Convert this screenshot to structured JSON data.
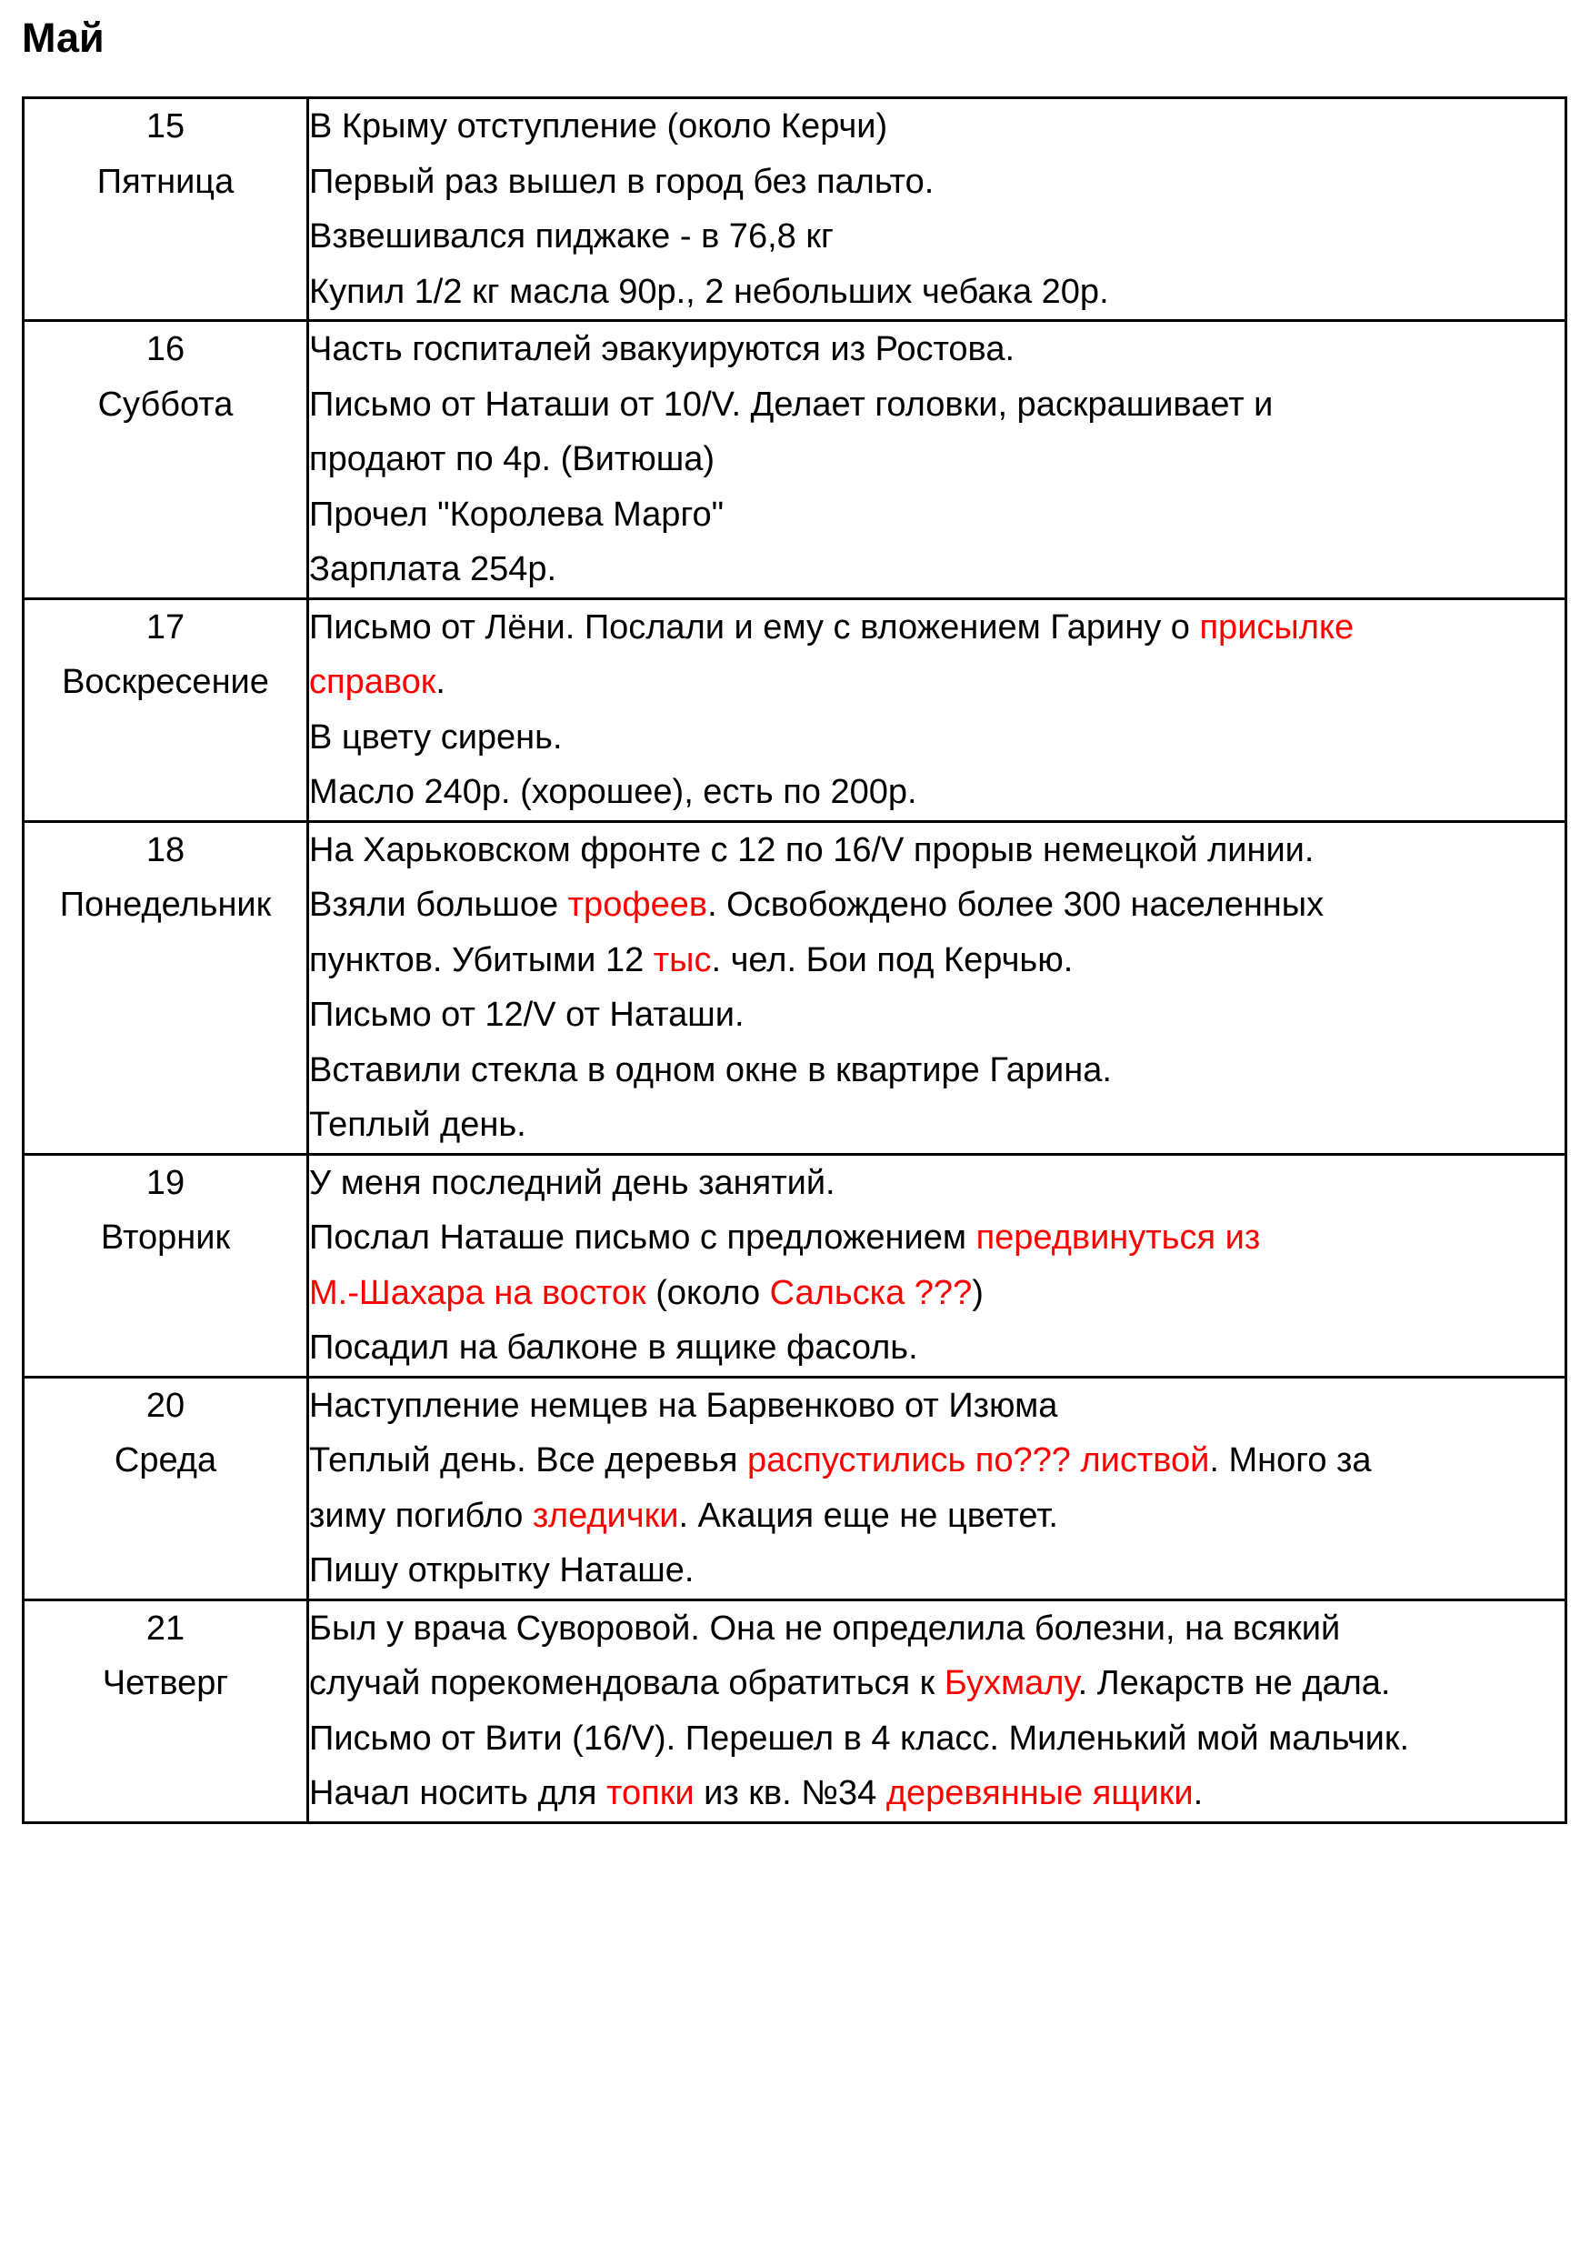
{
  "page": {
    "title": "Май"
  },
  "colors": {
    "text": "#000000",
    "highlight_red": "#ff0000",
    "background": "#ffffff",
    "table_border": "#000000"
  },
  "table": {
    "rows": [
      {
        "day": "15",
        "weekday": "Пятница",
        "lines": [
          [
            {
              "t": "В Крыму отступление (около Керчи)",
              "red": false
            }
          ],
          [
            {
              "t": "Первый раз вышел в город без пальто.",
              "red": false
            }
          ],
          [
            {
              "t": "Взвешивался пиджаке - в 76,8 кг",
              "red": false
            }
          ],
          [
            {
              "t": "Купил 1/2 кг масла 90р., 2 небольших чебака 20р.",
              "red": false
            }
          ]
        ]
      },
      {
        "day": "16",
        "weekday": "Суббота",
        "lines": [
          [
            {
              "t": "Часть госпиталей эвакуируются из Ростова.",
              "red": false
            }
          ],
          [
            {
              "t": "Письмо от Наташи от 10/V. Делает головки, раскрашивает и",
              "red": false
            }
          ],
          [
            {
              "t": "продают по 4р. (Витюша)",
              "red": false
            }
          ],
          [
            {
              "t": "Прочел \"Королева Марго\"",
              "red": false
            }
          ],
          [
            {
              "t": "Зарплата 254р.",
              "red": false
            }
          ]
        ]
      },
      {
        "day": "17",
        "weekday": "Воскресение",
        "lines": [
          [
            {
              "t": "Письмо от Лёни. Послали и ему с вложением Гарину о ",
              "red": false
            },
            {
              "t": "присылке",
              "red": true
            }
          ],
          [
            {
              "t": "справок",
              "red": true
            },
            {
              "t": ".",
              "red": false
            }
          ],
          [
            {
              "t": "В цвету сирень.",
              "red": false
            }
          ],
          [
            {
              "t": "Масло 240р. (хорошее), есть по 200р.",
              "red": false
            }
          ]
        ]
      },
      {
        "day": "18",
        "weekday": "Понедельник",
        "lines": [
          [
            {
              "t": "На Харьковском фронте с 12 по 16/V прорыв немецкой линии.",
              "red": false
            }
          ],
          [
            {
              "t": "Взяли большое ",
              "red": false
            },
            {
              "t": "трофеев",
              "red": true
            },
            {
              "t": ". Освобождено более 300 населенных",
              "red": false
            }
          ],
          [
            {
              "t": "пунктов. Убитыми 12 ",
              "red": false
            },
            {
              "t": "тыс",
              "red": true
            },
            {
              "t": ". чел. Бои под Керчью.",
              "red": false
            }
          ],
          [
            {
              "t": "Письмо от 12/V от Наташи.",
              "red": false
            }
          ],
          [
            {
              "t": "Вставили стекла в одном окне в квартире Гарина.",
              "red": false
            }
          ],
          [
            {
              "t": "Теплый день.",
              "red": false
            }
          ]
        ]
      },
      {
        "day": "19",
        "weekday": "Вторник",
        "lines": [
          [
            {
              "t": "У меня последний день занятий.",
              "red": false
            }
          ],
          [
            {
              "t": "Послал Наташе письмо с предложением ",
              "red": false
            },
            {
              "t": "передвинуться из",
              "red": true
            }
          ],
          [
            {
              "t": "М.-Шахара на восток",
              "red": true
            },
            {
              "t": " (около ",
              "red": false
            },
            {
              "t": "Сальска ???",
              "red": true
            },
            {
              "t": ")",
              "red": false
            }
          ],
          [
            {
              "t": "Посадил на балконе в ящике фасоль.",
              "red": false
            }
          ]
        ]
      },
      {
        "day": "20",
        "weekday": "Среда",
        "lines": [
          [
            {
              "t": "Наступление немцев на Барвенково от Изюма",
              "red": false
            }
          ],
          [
            {
              "t": "Теплый день. Все деревья ",
              "red": false
            },
            {
              "t": "распустились по??? листвой",
              "red": true
            },
            {
              "t": ". Много за",
              "red": false
            }
          ],
          [
            {
              "t": "зиму погибло ",
              "red": false
            },
            {
              "t": "зледички",
              "red": true
            },
            {
              "t": ". Акация еще не цветет.",
              "red": false
            }
          ],
          [
            {
              "t": "Пишу открытку Наташе.",
              "red": false
            }
          ]
        ]
      },
      {
        "day": "21",
        "weekday": "Четверг",
        "lines": [
          [
            {
              "t": "Был у врача Суворовой. Она не определила болезни, на всякий",
              "red": false
            }
          ],
          [
            {
              "t": "случай порекомендовала обратиться к ",
              "red": false
            },
            {
              "t": "Бухмалу",
              "red": true
            },
            {
              "t": ". Лекарств не дала.",
              "red": false
            }
          ],
          [
            {
              "t": "Письмо от Вити (16/V). Перешел в 4 класс. Миленький мой мальчик.",
              "red": false
            }
          ],
          [
            {
              "t": "Начал носить для ",
              "red": false
            },
            {
              "t": "топки",
              "red": true
            },
            {
              "t": " из кв. №34 ",
              "red": false
            },
            {
              "t": "деревянные ящики",
              "red": true
            },
            {
              "t": ".",
              "red": false
            }
          ]
        ]
      }
    ]
  }
}
